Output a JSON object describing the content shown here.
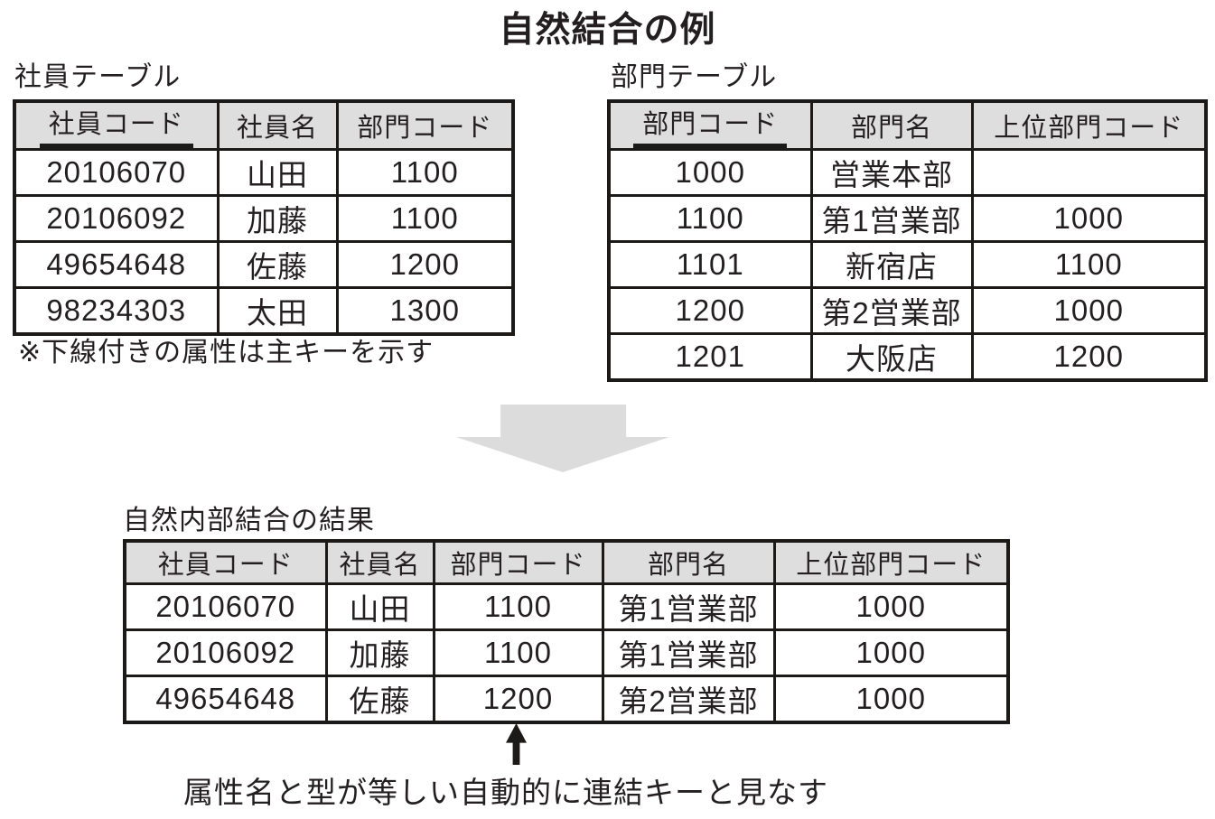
{
  "title": "自然結合の例",
  "employee_table": {
    "label": "社員テーブル",
    "headers": [
      {
        "text": "社員コード",
        "underline": true
      },
      {
        "text": "社員名",
        "underline": false
      },
      {
        "text": "部門コード",
        "underline": false
      }
    ],
    "rows": [
      [
        "20106070",
        "山田",
        "1100"
      ],
      [
        "20106092",
        "加藤",
        "1100"
      ],
      [
        "49654648",
        "佐藤",
        "1200"
      ],
      [
        "98234303",
        "太田",
        "1300"
      ]
    ]
  },
  "department_table": {
    "label": "部門テーブル",
    "headers": [
      {
        "text": "部門コード",
        "underline": true
      },
      {
        "text": "部門名",
        "underline": false
      },
      {
        "text": "上位部門コード",
        "underline": false
      }
    ],
    "rows": [
      [
        "1000",
        "営業本部",
        ""
      ],
      [
        "1100",
        "第1営業部",
        "1000"
      ],
      [
        "1101",
        "新宿店",
        "1100"
      ],
      [
        "1200",
        "第2営業部",
        "1000"
      ],
      [
        "1201",
        "大阪店",
        "1200"
      ]
    ]
  },
  "pk_note": "※下線付きの属性は主キーを示す",
  "result_table": {
    "label": "自然内部結合の結果",
    "headers": [
      {
        "text": "社員コード",
        "underline": false
      },
      {
        "text": "社員名",
        "underline": false
      },
      {
        "text": "部門コード",
        "underline": false
      },
      {
        "text": "部門名",
        "underline": false
      },
      {
        "text": "上位部門コード",
        "underline": false
      }
    ],
    "rows": [
      [
        "20106070",
        "山田",
        "1100",
        "第1営業部",
        "1000"
      ],
      [
        "20106092",
        "加藤",
        "1100",
        "第1営業部",
        "1000"
      ],
      [
        "49654648",
        "佐藤",
        "1200",
        "第2営業部",
        "1000"
      ]
    ]
  },
  "join_note": "属性名と型が等しい自動的に連結キーと見なす",
  "icons": {
    "down_arrow": "down-block-arrow-icon",
    "up_arrow": "up-arrow-icon"
  },
  "colors": {
    "header_bg": "#dedede",
    "border": "#1c1a19",
    "text": "#231f20",
    "arrow_gray": "#dcdcdc"
  }
}
